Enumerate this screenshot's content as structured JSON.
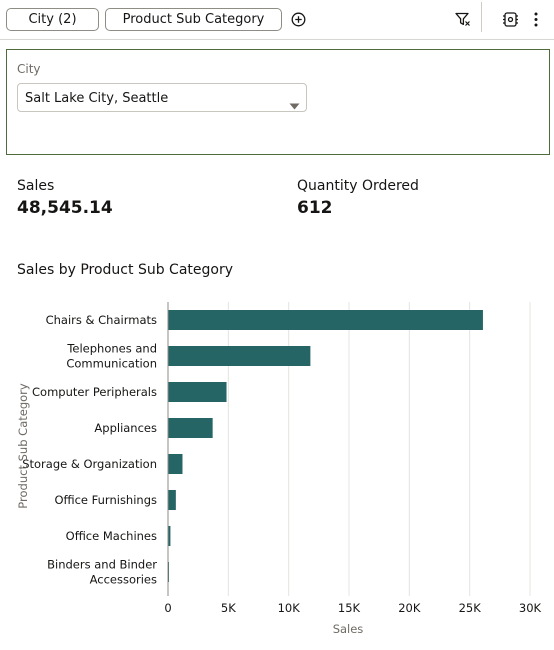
{
  "toolbar": {
    "city_chip": "City (2)",
    "product_sub_category_chip": "Product Sub Category",
    "icons": [
      "add-icon",
      "filter-icon",
      "settings-icon",
      "more-icon"
    ]
  },
  "filter": {
    "label": "City",
    "value": "Salt Lake City, Seattle"
  },
  "kpis": {
    "sales_label": "Sales",
    "sales_value": "48,545.14",
    "quantity_label": "Quantity Ordered",
    "quantity_value": "612"
  },
  "chart_title": "Sales by Product Sub Category",
  "chart_data": {
    "type": "bar",
    "orientation": "horizontal",
    "title": "Sales by Product Sub Category",
    "xlabel": "Sales",
    "ylabel": "Product Sub Category",
    "categories": [
      "Chairs & Chairmats",
      "Telephones and Communication",
      "Computer Peripherals",
      "Appliances",
      "Storage & Organization",
      "Office Furnishings",
      "Office Machines",
      "Binders and Binder Accessories"
    ],
    "category_lines": [
      [
        "Chairs & Chairmats"
      ],
      [
        "Telephones and",
        "Communication"
      ],
      [
        "Computer Peripherals"
      ],
      [
        "Appliances"
      ],
      [
        "Storage & Organization"
      ],
      [
        "Office Furnishings"
      ],
      [
        "Office Machines"
      ],
      [
        "Binders and Binder",
        "Accessories"
      ]
    ],
    "values": [
      26100,
      11800,
      4850,
      3700,
      1200,
      650,
      200,
      45
    ],
    "xlim": [
      0,
      30000
    ],
    "xticks": [
      0,
      5000,
      10000,
      15000,
      20000,
      25000,
      30000
    ],
    "xtick_labels": [
      "0",
      "5K",
      "10K",
      "15K",
      "20K",
      "25K",
      "30K"
    ],
    "bar_color": "#256565",
    "grid": true
  }
}
